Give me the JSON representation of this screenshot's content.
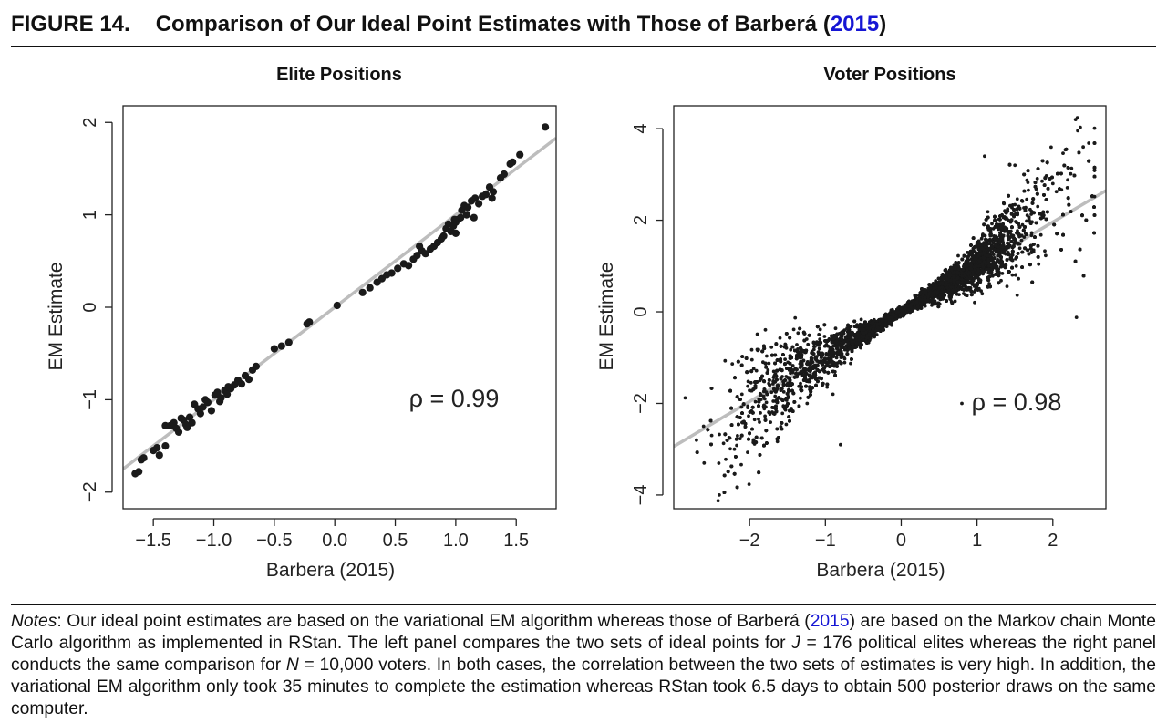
{
  "figure": {
    "number": "FIGURE 14.",
    "title_prefix": "Comparison of Our Ideal Point Estimates with Those of Barberá (",
    "title_link": "2015",
    "title_suffix": ")"
  },
  "chart_data": [
    {
      "type": "scatter",
      "title": "Elite Positions",
      "xlabel": "Barbera (2015)",
      "ylabel": "EM Estimate",
      "xlim": [
        -1.75,
        1.83
      ],
      "ylim": [
        -2.18,
        2.18
      ],
      "xticks": [
        -1.5,
        -1.0,
        -0.5,
        0.0,
        0.5,
        1.0,
        1.5
      ],
      "xtick_labels": [
        "−1.5",
        "−1.0",
        "−0.5",
        "0.0",
        "0.5",
        "1.0",
        "1.5"
      ],
      "yticks": [
        -2,
        -1,
        0,
        1,
        2
      ],
      "ytick_labels": [
        "−2",
        "−1",
        "0",
        "1",
        "2"
      ],
      "annotation": "ρ = 0.99",
      "correlation": 0.99,
      "n_points": 176,
      "grid": false,
      "fit_line": {
        "intercept": 0.0,
        "slope": 1.0,
        "color": "#bdbdbd"
      },
      "point_color": "#1a1a1a",
      "points": [
        [
          -1.65,
          -1.8
        ],
        [
          -1.62,
          -1.78
        ],
        [
          -1.6,
          -1.65
        ],
        [
          -1.58,
          -1.63
        ],
        [
          -1.5,
          -1.55
        ],
        [
          -1.47,
          -1.52
        ],
        [
          -1.45,
          -1.6
        ],
        [
          -1.4,
          -1.5
        ],
        [
          -1.36,
          -1.28
        ],
        [
          -1.33,
          -1.25
        ],
        [
          -1.31,
          -1.31
        ],
        [
          -1.29,
          -1.35
        ],
        [
          -1.27,
          -1.2
        ],
        [
          -1.25,
          -1.22
        ],
        [
          -1.23,
          -1.27
        ],
        [
          -1.2,
          -1.19
        ],
        [
          -1.18,
          -1.25
        ],
        [
          -1.16,
          -1.05
        ],
        [
          -1.13,
          -1.1
        ],
        [
          -1.11,
          -1.15
        ],
        [
          -1.09,
          -1.08
        ],
        [
          -1.07,
          -1.0
        ],
        [
          -1.05,
          -1.03
        ],
        [
          -1.02,
          -1.12
        ],
        [
          -0.99,
          -0.95
        ],
        [
          -0.97,
          -0.92
        ],
        [
          -0.94,
          -0.98
        ],
        [
          -0.91,
          -0.9
        ],
        [
          -0.89,
          -0.94
        ],
        [
          -0.86,
          -0.88
        ],
        [
          -0.83,
          -0.84
        ],
        [
          -0.8,
          -0.79
        ],
        [
          -0.77,
          -0.83
        ],
        [
          -0.74,
          -0.74
        ],
        [
          -0.71,
          -0.78
        ],
        [
          -0.68,
          -0.68
        ],
        [
          -0.65,
          -0.64
        ],
        [
          -0.5,
          -0.45
        ],
        [
          -0.44,
          -0.42
        ],
        [
          -0.38,
          -0.38
        ],
        [
          -0.23,
          -0.18
        ],
        [
          -0.21,
          -0.16
        ],
        [
          0.02,
          0.02
        ],
        [
          0.23,
          0.16
        ],
        [
          0.29,
          0.21
        ],
        [
          0.35,
          0.27
        ],
        [
          0.39,
          0.31
        ],
        [
          0.43,
          0.35
        ],
        [
          0.47,
          0.37
        ],
        [
          0.52,
          0.42
        ],
        [
          0.57,
          0.47
        ],
        [
          0.61,
          0.45
        ],
        [
          0.65,
          0.52
        ],
        [
          0.68,
          0.56
        ],
        [
          0.72,
          0.61
        ],
        [
          0.75,
          0.58
        ],
        [
          0.79,
          0.63
        ],
        [
          0.82,
          0.66
        ],
        [
          0.85,
          0.7
        ],
        [
          0.88,
          0.74
        ],
        [
          0.9,
          0.77
        ],
        [
          0.92,
          0.85
        ],
        [
          0.94,
          0.9
        ],
        [
          0.96,
          0.82
        ],
        [
          0.98,
          0.88
        ],
        [
          1.0,
          0.92
        ],
        [
          1.02,
          0.95
        ],
        [
          1.04,
          0.97
        ],
        [
          1.05,
          1.05
        ],
        [
          1.07,
          1.1
        ],
        [
          1.09,
          1.0
        ],
        [
          1.1,
          1.08
        ],
        [
          1.13,
          1.15
        ],
        [
          1.16,
          1.18
        ],
        [
          1.19,
          1.12
        ],
        [
          1.22,
          1.2
        ],
        [
          1.25,
          1.22
        ],
        [
          1.28,
          1.3
        ],
        [
          1.31,
          1.25
        ],
        [
          1.37,
          1.4
        ],
        [
          1.4,
          1.44
        ],
        [
          1.45,
          1.55
        ],
        [
          1.47,
          1.57
        ],
        [
          1.53,
          1.65
        ],
        [
          1.74,
          1.95
        ],
        [
          -0.95,
          -1.02
        ],
        [
          0.7,
          0.66
        ],
        [
          1.0,
          0.8
        ],
        [
          0.99,
          0.95
        ],
        [
          1.15,
          0.97
        ],
        [
          1.3,
          1.18
        ],
        [
          -1.22,
          -1.3
        ],
        [
          -1.4,
          -1.28
        ],
        [
          -0.88,
          -0.86
        ]
      ]
    },
    {
      "type": "scatter",
      "title": "Voter Positions",
      "xlabel": "Barbera (2015)",
      "ylabel": "EM Estimate",
      "xlim": [
        -3.0,
        2.7
      ],
      "ylim": [
        -4.3,
        4.5
      ],
      "xticks": [
        -2,
        -1,
        0,
        1,
        2
      ],
      "xtick_labels": [
        "−2",
        "−1",
        "0",
        "1",
        "2"
      ],
      "yticks": [
        -4,
        -2,
        0,
        2,
        4
      ],
      "ytick_labels": [
        "−4",
        "−2",
        "0",
        "2",
        "4"
      ],
      "annotation": "ρ = 0.98",
      "correlation": 0.98,
      "n_points": 10000,
      "grid": false,
      "fit_line": {
        "intercept": 0.0,
        "slope": 0.98,
        "color": "#bdbdbd"
      },
      "point_color": "#1a1a1a",
      "points": [
        [
          -2.4,
          -4.0
        ],
        [
          -2.6,
          -3.3
        ],
        [
          -2.2,
          -3.0
        ],
        [
          -2.5,
          -2.7
        ],
        [
          -2.7,
          -2.8
        ],
        [
          -2.1,
          -1.8
        ],
        [
          -1.8,
          -1.9
        ],
        [
          -1.5,
          -1.6
        ],
        [
          -1.2,
          -1.3
        ],
        [
          -1.0,
          -1.1
        ],
        [
          -0.8,
          -0.9
        ],
        [
          -0.5,
          -0.55
        ],
        [
          -0.2,
          -0.2
        ],
        [
          0.1,
          0.05
        ],
        [
          0.4,
          0.35
        ],
        [
          0.7,
          0.65
        ],
        [
          0.9,
          0.85
        ],
        [
          1.0,
          1.0
        ],
        [
          1.2,
          1.3
        ],
        [
          1.4,
          1.5
        ],
        [
          1.6,
          1.9
        ],
        [
          1.8,
          2.3
        ],
        [
          2.0,
          2.8
        ],
        [
          2.3,
          4.2
        ],
        [
          2.4,
          3.6
        ],
        [
          1.5,
          3.2
        ],
        [
          1.1,
          3.4
        ],
        [
          0.8,
          -2.0
        ],
        [
          -0.8,
          -2.9
        ],
        [
          -0.9,
          -1.8
        ]
      ]
    }
  ],
  "notes": {
    "label": "Notes",
    "s1": ": Our ideal point estimates are based on the variational EM algorithm whereas those of Barberá (",
    "link": "2015",
    "s2": ") are based on the Markov chain Monte Carlo algorithm as implemented in RStan. The left panel compares the two sets of ideal points for ",
    "j_var": "J",
    "s3": " = 176 political elites whereas the right panel conducts the same comparison for ",
    "n_var": "N",
    "s4": " = 10,000 voters. In both cases, the correlation between the two sets of estimates is very high. In addition, the variational EM algorithm only took 35 minutes to complete the estimation whereas RStan took 6.5 days to obtain 500 posterior draws on the same computer."
  }
}
